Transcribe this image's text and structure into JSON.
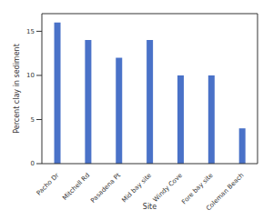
{
  "chart_data": {
    "type": "bar",
    "x_label": "Site",
    "y_label": "Percent clay in sediment",
    "categories": [
      "Pacho Dr",
      "Mitchell Rd",
      "Pasadena Pt",
      "Mid bay site",
      "Windy Cove",
      "Fore bay site",
      "Coleman Beach"
    ],
    "values": [
      16,
      14,
      12,
      14,
      10,
      10,
      4
    ],
    "color": "#4a72c8",
    "ylim": [
      0,
      17
    ],
    "yticks": [
      0,
      5,
      10,
      15
    ],
    "grid": false
  }
}
